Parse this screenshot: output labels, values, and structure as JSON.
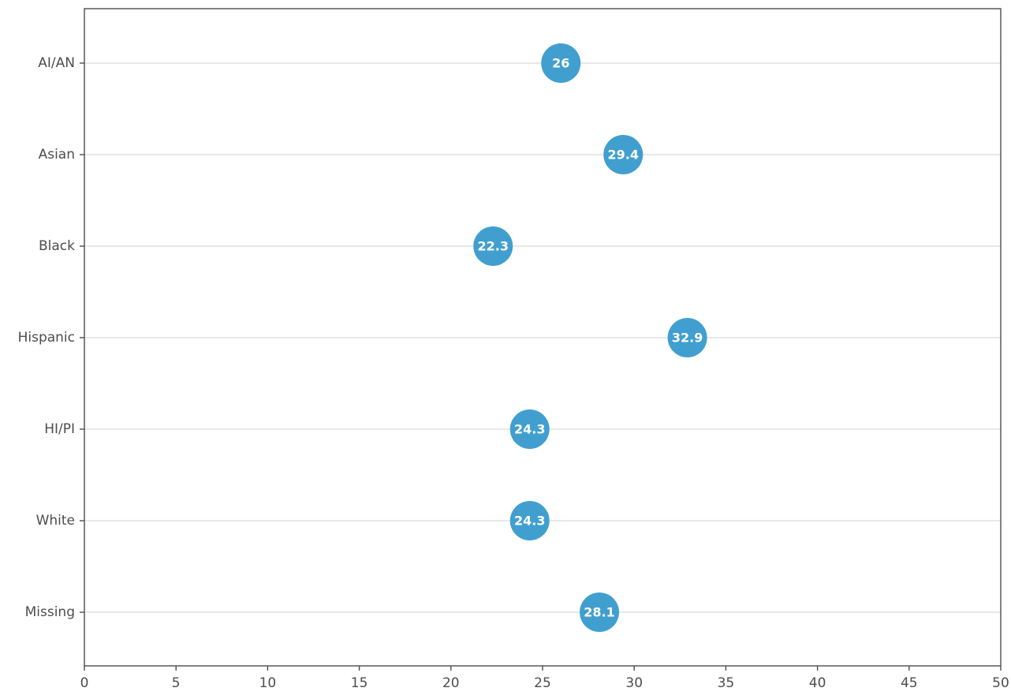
{
  "chart_data": {
    "type": "scatter",
    "title": "",
    "xlabel": "",
    "ylabel": "",
    "categories": [
      "AI/AN",
      "Asian",
      "Black",
      "Hispanic",
      "HI/PI",
      "White",
      "Missing"
    ],
    "values": [
      26,
      29.4,
      22.3,
      32.9,
      24.3,
      24.3,
      28.1
    ],
    "labels": [
      "26",
      "29.4",
      "22.3",
      "32.9",
      "24.3",
      "24.3",
      "28.1"
    ],
    "xlim": [
      0,
      50
    ],
    "xticks": [
      0,
      5,
      10,
      15,
      20,
      25,
      30,
      35,
      40,
      45,
      50
    ],
    "grid": "horizontal",
    "point_color": "#419FD0",
    "label_color": "#ffffff",
    "legend": "none"
  }
}
